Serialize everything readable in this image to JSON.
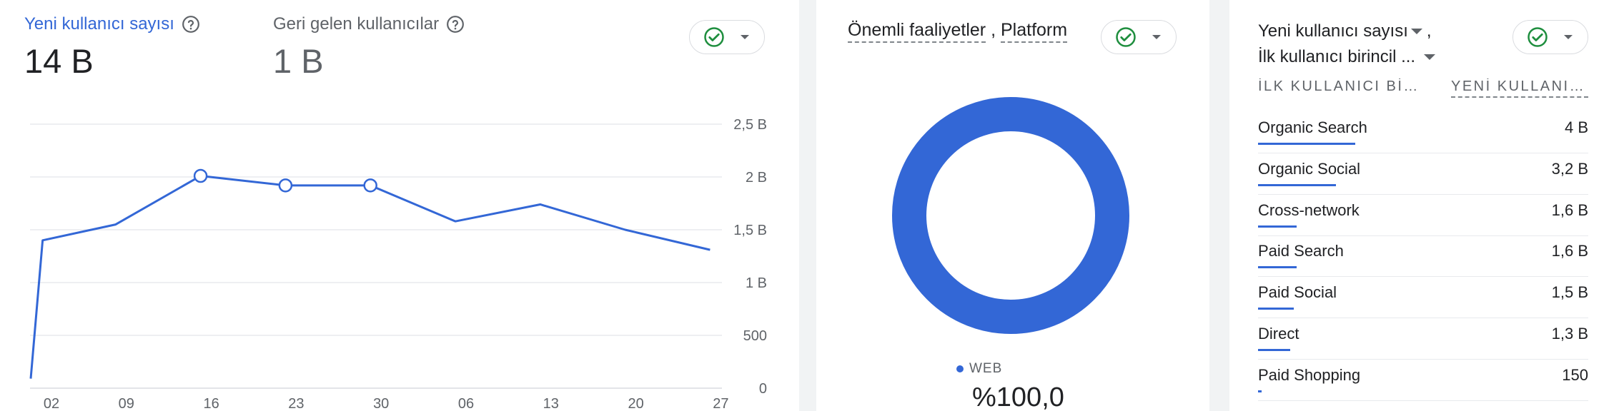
{
  "colors": {
    "accent": "#3367d6",
    "check": "#1e8e3e"
  },
  "overview": {
    "primary_metric": {
      "label": "Yeni kullanıcı sayısı",
      "value": "14 B",
      "icon": "help-icon"
    },
    "secondary_metric": {
      "label": "Geri gelen kullanıcılar",
      "value": "1 B",
      "icon": "help-icon"
    },
    "status_icon": "check-circle-icon",
    "menu_icon": "arrow-drop-down-icon"
  },
  "chart_data": {
    "type": "line",
    "y_axis_side": "right",
    "ylim": [
      0,
      2500
    ],
    "y_ticks": [
      {
        "value": 0,
        "label": "0"
      },
      {
        "value": 500,
        "label": "500"
      },
      {
        "value": 1000,
        "label": "1 B"
      },
      {
        "value": 1500,
        "label": "1,5 B"
      },
      {
        "value": 2000,
        "label": "2 B"
      },
      {
        "value": 2500,
        "label": "2,5 B"
      }
    ],
    "x_ticks": [
      "02",
      "09",
      "16",
      "23",
      "30",
      "06",
      "13",
      "20",
      "27"
    ],
    "grid": true,
    "series": [
      {
        "points": [
          {
            "t": 0.0,
            "value": 90
          },
          {
            "t": 0.14,
            "value": 1400
          },
          {
            "t": 1.0,
            "value": 1550
          },
          {
            "t": 2.0,
            "value": 2010
          },
          {
            "t": 3.0,
            "value": 1920
          },
          {
            "t": 4.0,
            "value": 1920
          },
          {
            "t": 5.0,
            "value": 1580
          },
          {
            "t": 6.0,
            "value": 1740
          },
          {
            "t": 7.0,
            "value": 1500
          },
          {
            "t": 8.0,
            "value": 1310
          }
        ],
        "markers_at": [
          2.0,
          3.0,
          4.0
        ]
      }
    ]
  },
  "platform": {
    "title_part1": "Önemli faaliyetler",
    "separator": ",",
    "title_part2": "Platform",
    "donut": {
      "label": "WEB",
      "value_text": "%100,0",
      "fraction": 1.0
    }
  },
  "table": {
    "title_line1": "Yeni kullanıcı sayısı",
    "title_line1_suffix": ",",
    "title_line2": "İlk kullanıcı birincil ...",
    "col1_header": "İLK KULLANICI BİRİ...",
    "col2_header": "YENİ KULLANIC...",
    "rows": [
      {
        "label": "Organic Search",
        "value": "4 B",
        "share": 1.0
      },
      {
        "label": "Organic Social",
        "value": "3,2 B",
        "share": 0.8
      },
      {
        "label": "Cross-network",
        "value": "1,6 B",
        "share": 0.4
      },
      {
        "label": "Paid Search",
        "value": "1,6 B",
        "share": 0.4
      },
      {
        "label": "Paid Social",
        "value": "1,5 B",
        "share": 0.37
      },
      {
        "label": "Direct",
        "value": "1,3 B",
        "share": 0.33
      },
      {
        "label": "Paid Shopping",
        "value": "150",
        "share": 0.04
      }
    ]
  }
}
